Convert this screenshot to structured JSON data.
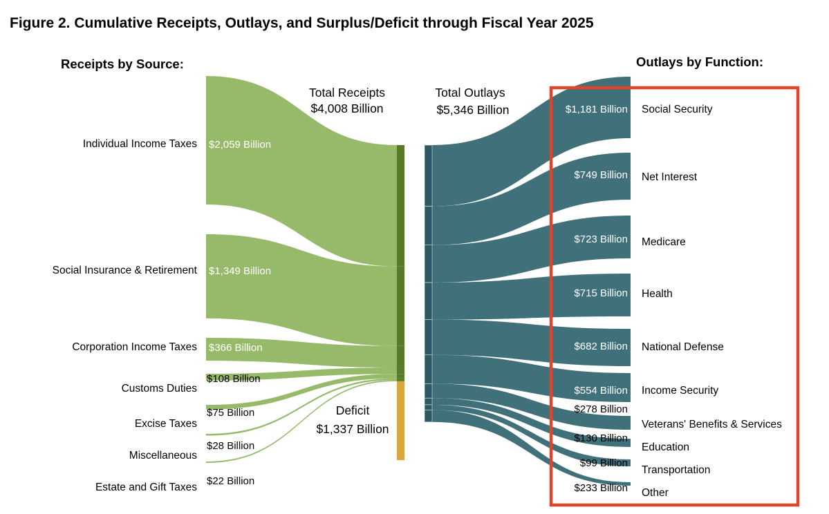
{
  "chart_data": {
    "type": "sankey",
    "title": "Figure 2. Cumulative Receipts, Outlays, and Surplus/Deficit through Fiscal Year 2025",
    "receipts_heading": "Receipts by Source:",
    "outlays_heading": "Outlays by Function:",
    "total_receipts": {
      "label": "Total Receipts",
      "value_text": "$4,008 Billion",
      "value": 4008
    },
    "total_outlays": {
      "label": "Total Outlays",
      "value_text": "$5,346 Billion",
      "value": 5346
    },
    "deficit": {
      "label": "Deficit",
      "value_text": "$1,337 Billion",
      "value": 1337
    },
    "receipts": [
      {
        "name": "Individual Income Taxes",
        "value": 2059,
        "value_text": "$2,059 Billion"
      },
      {
        "name": "Social Insurance & Retirement",
        "value": 1349,
        "value_text": "$1,349 Billion"
      },
      {
        "name": "Corporation Income Taxes",
        "value": 366,
        "value_text": "$366 Billion"
      },
      {
        "name": "Customs Duties",
        "value": 108,
        "value_text": "$108 Billion"
      },
      {
        "name": "Excise Taxes",
        "value": 75,
        "value_text": "$75 Billion"
      },
      {
        "name": "Miscellaneous",
        "value": 28,
        "value_text": "$28 Billion"
      },
      {
        "name": "Estate and Gift Taxes",
        "value": 22,
        "value_text": "$22 Billion"
      }
    ],
    "outlays": [
      {
        "name": "Social Security",
        "value": 1181,
        "value_text": "$1,181 Billion"
      },
      {
        "name": "Net Interest",
        "value": 749,
        "value_text": "$749 Billion"
      },
      {
        "name": "Medicare",
        "value": 723,
        "value_text": "$723 Billion"
      },
      {
        "name": "Health",
        "value": 715,
        "value_text": "$715 Billion"
      },
      {
        "name": "National Defense",
        "value": 682,
        "value_text": "$682 Billion"
      },
      {
        "name": "Income Security",
        "value": 554,
        "value_text": "$554 Billion"
      },
      {
        "name": "Veterans' Benefits & Services",
        "value": 278,
        "value_text": "$278 Billion"
      },
      {
        "name": "Education",
        "value": 130,
        "value_text": "$130 Billion"
      },
      {
        "name": "Transportation",
        "value": 99,
        "value_text": "$99 Billion"
      },
      {
        "name": "Other",
        "value": 233,
        "value_text": "$233 Billion"
      }
    ],
    "colors": {
      "receipts": "#97ba6a",
      "receipts_bar": "#5a7a2a",
      "deficit_bar": "#d8a740",
      "outlays": "#40707a",
      "outlays_bar": "#2f5864",
      "highlight_box": "#e0442a"
    }
  }
}
